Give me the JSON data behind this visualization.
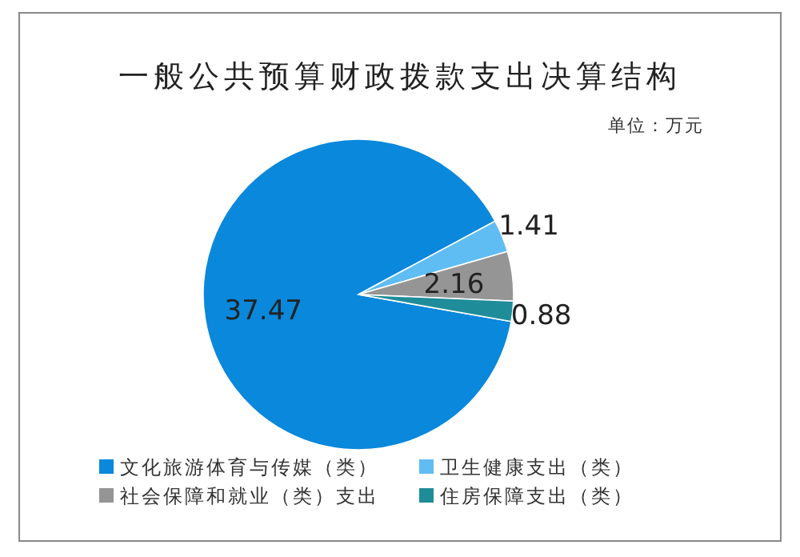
{
  "chart_data": {
    "type": "pie",
    "title": "一般公共预算财政拨款支出决算结构",
    "subtitle": "单位：万元",
    "categories": [
      "文化旅游体育与传媒（类）",
      "卫生健康支出（类）",
      "社会保障和就业（类）支出",
      "住房保障支出（类）"
    ],
    "values": [
      37.47,
      1.41,
      2.16,
      0.88
    ],
    "colors": [
      "#0a88dc",
      "#5fbdf4",
      "#959595",
      "#1f8c99"
    ],
    "data_labels": true,
    "legend": "bottom"
  }
}
